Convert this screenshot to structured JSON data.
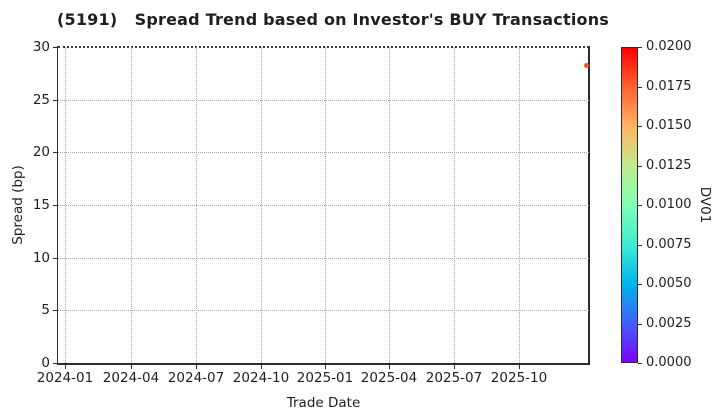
{
  "chart_data": {
    "type": "scatter",
    "title": "(5191)   Spread Trend based on Investor's BUY Transactions",
    "xlabel": "Trade Date",
    "ylabel": "Spread (bp)",
    "x_tick_labels": [
      "2024-01",
      "2024-04",
      "2024-07",
      "2024-10",
      "2025-01",
      "2025-04",
      "2025-07",
      "2025-10"
    ],
    "y_ticks": [
      0,
      5,
      10,
      15,
      20,
      25,
      30
    ],
    "ylim": [
      0,
      30
    ],
    "grid": true,
    "grid_style": "dotted",
    "legend": "none",
    "points": [
      {
        "date_approx": "2025-12",
        "spread_bp": 28.2,
        "dv01_est": 0.0175,
        "color": "#f2572b"
      }
    ],
    "colorbar": {
      "label": "DV01",
      "range": [
        0.0,
        0.02
      ],
      "tick_labels_top_to_bottom": [
        "0.0200",
        "0.0175",
        "0.0150",
        "0.0125",
        "0.0100",
        "0.0075",
        "0.0050",
        "0.0025",
        "0.0000"
      ],
      "colormap": "rainbow",
      "gradient_stops_bottom_to_top": [
        "#8000ff",
        "#4062fa",
        "#00b4ec",
        "#40ecd4",
        "#80ffb4",
        "#bfec8e",
        "#ffb462",
        "#ff6232",
        "#ff0000"
      ]
    }
  },
  "colors": {
    "background": "#ffffff",
    "spine": "#2b2b2b",
    "gridline": "#a8a8a8",
    "text": "#1f1f1f"
  }
}
